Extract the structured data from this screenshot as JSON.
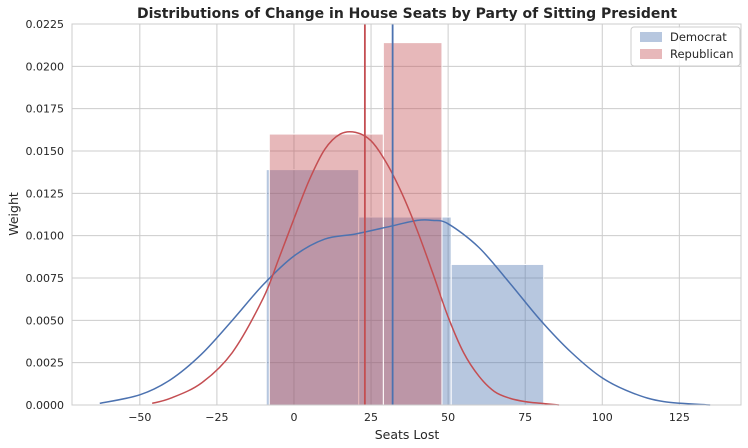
{
  "chart_data": {
    "type": "histogram+kde",
    "title": "Distributions of Change in House Seats by Party of Sitting President",
    "xlabel": "Seats Lost",
    "ylabel": "Weight",
    "xlim": [
      -72,
      145
    ],
    "ylim": [
      0,
      0.0225
    ],
    "xticks": [
      -50,
      -25,
      0,
      25,
      50,
      75,
      100,
      125
    ],
    "xtick_labels": [
      "−50",
      "−25",
      "0",
      "25",
      "50",
      "75",
      "100",
      "125"
    ],
    "yticks": [
      0,
      0.0025,
      0.005,
      0.0075,
      0.01,
      0.0125,
      0.015,
      0.0175,
      0.02,
      0.0225
    ],
    "ytick_labels": [
      "0.0000",
      "0.0025",
      "0.0050",
      "0.0075",
      "0.0100",
      "0.0125",
      "0.0150",
      "0.0175",
      "0.0200",
      "0.0225"
    ],
    "grid": true,
    "legend_position": "top-right",
    "series": [
      {
        "name": "Democrat",
        "color": "#4c72b0",
        "bins": [
          {
            "x0": -9,
            "x1": 21,
            "value": 0.0139
          },
          {
            "x0": 21,
            "x1": 51,
            "value": 0.0111
          },
          {
            "x0": 51,
            "x1": 81,
            "value": 0.0083
          }
        ],
        "mean": 32,
        "kde": {
          "x": [
            -63,
            -50,
            -40,
            -30,
            -20,
            -10,
            0,
            10,
            20,
            30,
            40,
            45,
            50,
            60,
            70,
            80,
            90,
            100,
            110,
            120,
            135
          ],
          "y": [
            0.0001,
            0.0006,
            0.0015,
            0.003,
            0.005,
            0.0071,
            0.0088,
            0.0098,
            0.0101,
            0.0105,
            0.0109,
            0.0109,
            0.0107,
            0.0093,
            0.0072,
            0.005,
            0.0031,
            0.0016,
            0.0007,
            0.0002,
            0.0
          ]
        }
      },
      {
        "name": "Republican",
        "color": "#c44e52",
        "bins": [
          {
            "x0": -8,
            "x1": 29,
            "value": 0.016
          },
          {
            "x0": 29,
            "x1": 48,
            "value": 0.0214
          }
        ],
        "mean": 23,
        "kde": {
          "x": [
            -46,
            -40,
            -30,
            -20,
            -10,
            -5,
            0,
            5,
            10,
            15,
            20,
            25,
            30,
            35,
            40,
            45,
            50,
            55,
            60,
            65,
            70,
            75,
            80,
            86
          ],
          "y": [
            0.0001,
            0.0004,
            0.0013,
            0.0031,
            0.0063,
            0.0086,
            0.011,
            0.0133,
            0.0151,
            0.016,
            0.0161,
            0.0156,
            0.0143,
            0.0125,
            0.0103,
            0.0078,
            0.0052,
            0.0031,
            0.0017,
            0.0008,
            0.0004,
            0.0002,
            0.0001,
            0.0
          ]
        }
      }
    ]
  }
}
